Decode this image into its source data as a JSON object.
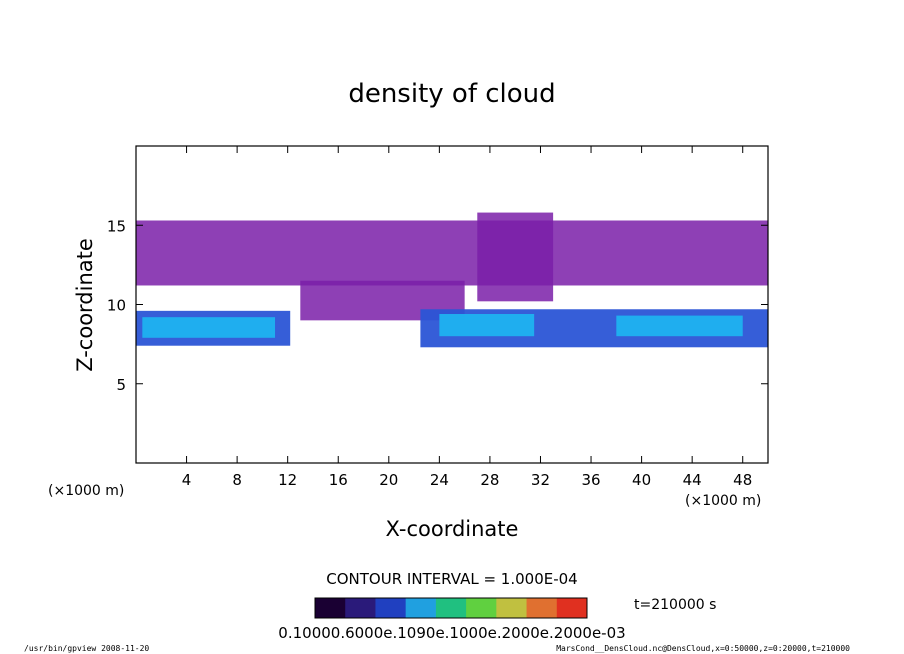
{
  "chart_data": {
    "type": "heatmap",
    "title": "density of cloud",
    "xlabel": "X-coordinate",
    "ylabel": "Z-coordinate",
    "x_unit": "(×1000 m)",
    "y_unit": "(×1000 m)",
    "xlim": [
      0,
      50
    ],
    "ylim": [
      0,
      20
    ],
    "x_ticks": [
      4,
      8,
      12,
      16,
      20,
      24,
      28,
      32,
      36,
      40,
      44,
      48
    ],
    "y_ticks": [
      5,
      10,
      15
    ],
    "contour_interval": "CONTOUR INTERVAL = 1.000E-04",
    "time_label": "t=210000 s",
    "colorbar_text": "0.10000.6000e.1090e.1000e.2000e.2000e-03",
    "footer_left": "/usr/bin/gpview   2008-11-20",
    "footer_right": "MarsCond__DensCloud.nc@DensCloud,x=0:50000,z=0:20000,t=210000",
    "regions": [
      {
        "level": 1,
        "x0": 0,
        "x1": 50,
        "z0": 11.2,
        "z1": 15.3
      },
      {
        "level": 1,
        "x0": 13,
        "x1": 26,
        "z0": 9.0,
        "z1": 11.5
      },
      {
        "level": 1,
        "x0": 27,
        "x1": 33,
        "z0": 10.2,
        "z1": 15.8
      },
      {
        "level": 2,
        "x0": 0,
        "x1": 12.2,
        "z0": 7.4,
        "z1": 9.6
      },
      {
        "level": 2,
        "x0": 22.5,
        "x1": 50,
        "z0": 7.3,
        "z1": 9.7
      },
      {
        "level": 3,
        "x0": 0.5,
        "x1": 11,
        "z0": 7.9,
        "z1": 9.2
      },
      {
        "level": 3,
        "x0": 24,
        "x1": 31.5,
        "z0": 8.0,
        "z1": 9.4
      },
      {
        "level": 3,
        "x0": 38,
        "x1": 48,
        "z0": 8.0,
        "z1": 9.3
      }
    ],
    "colors": [
      "#7a1fa8",
      "#2b55d6",
      "#1fb2f0"
    ],
    "colorbar_colors": [
      "#1a0033",
      "#2a1a7a",
      "#2040c0",
      "#20a0e0",
      "#20c080",
      "#60d040",
      "#c0c040",
      "#e07030",
      "#e03020"
    ]
  }
}
